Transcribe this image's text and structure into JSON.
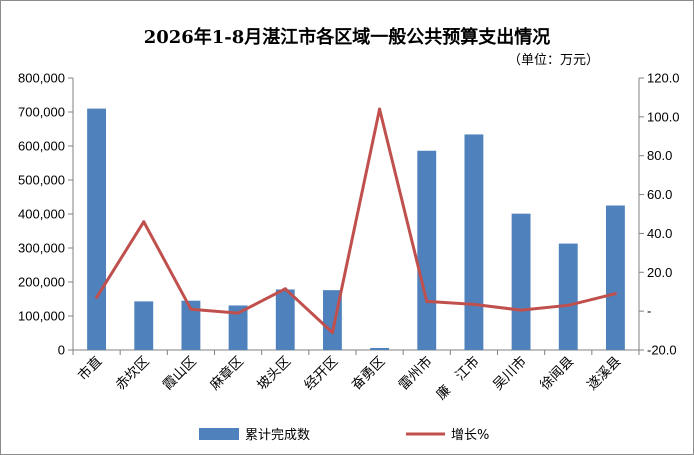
{
  "title": "2026年1-8月湛江市各区域一般公共预算支出情况",
  "unit_note": "（单位：万元）",
  "chart_data": {
    "type": "bar",
    "categories": [
      "市直",
      "赤坎区",
      "霞山区",
      "麻章区",
      "坡头区",
      "经开区",
      "奋勇区",
      "雷州市",
      "廉　江市",
      "吴川市",
      "徐闻县",
      "遂溪县"
    ],
    "series": [
      {
        "name": "累计完成数",
        "type": "bar",
        "axis": "left",
        "color": "#4f81bd",
        "values": [
          710000,
          143000,
          145000,
          131000,
          178000,
          176000,
          6000,
          586000,
          634000,
          401000,
          313000,
          425000
        ]
      },
      {
        "name": "增长%",
        "type": "line",
        "axis": "right",
        "color": "#c0504d",
        "values": [
          7.0,
          46.0,
          1.0,
          -1.0,
          11.5,
          -11.0,
          104.0,
          5.0,
          3.5,
          0.5,
          3.0,
          9.0
        ]
      }
    ],
    "y_left": {
      "min": 0,
      "max": 800000,
      "step": 100000,
      "tick_labels": [
        "0",
        "100,000",
        "200,000",
        "300,000",
        "400,000",
        "500,000",
        "600,000",
        "700,000",
        "800,000"
      ]
    },
    "y_right": {
      "min": -20,
      "max": 120,
      "step": 20,
      "tick_labels": [
        "-20.0",
        "-",
        "20.0",
        "40.0",
        "60.0",
        "80.0",
        "100.0",
        "120.0"
      ]
    },
    "grid": false,
    "legend_position": "bottom"
  }
}
